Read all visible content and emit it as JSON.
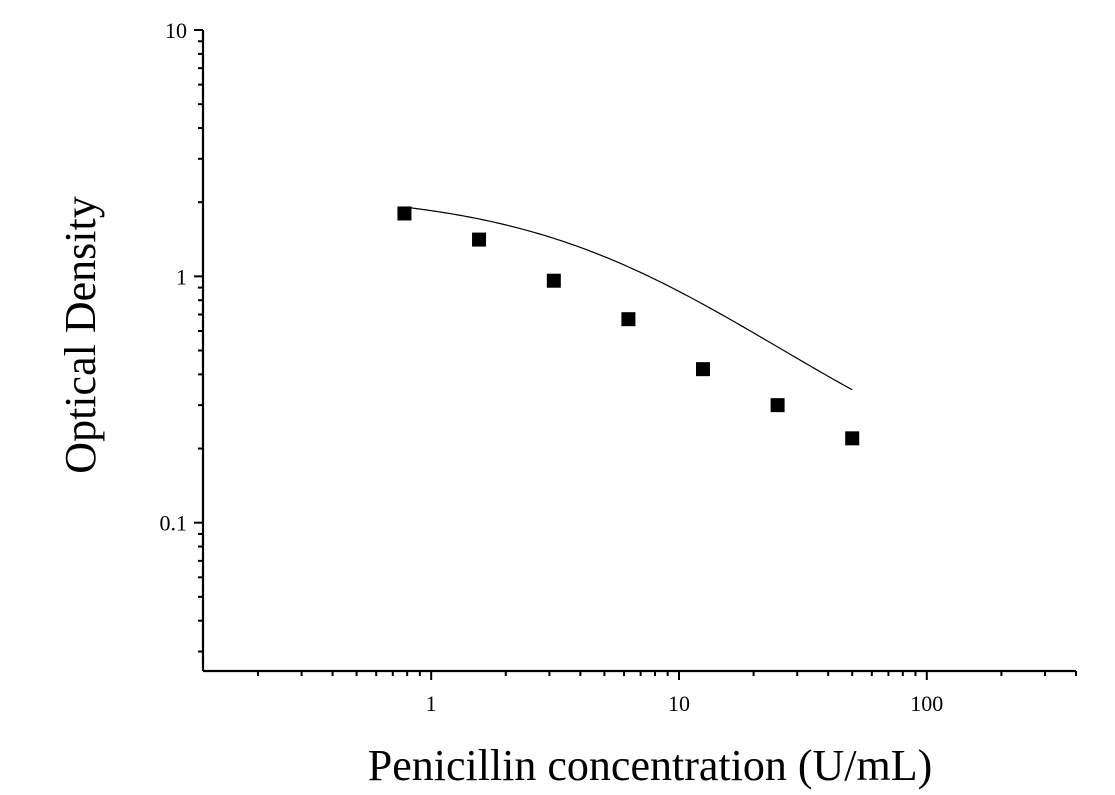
{
  "chart_data": {
    "type": "scatter",
    "title": "",
    "xlabel": "Penicillin concentration (U/mL)",
    "ylabel": "Optical Density",
    "x_scale": "log",
    "y_scale": "log",
    "xlim": [
      0.12,
      400
    ],
    "ylim": [
      0.025,
      10
    ],
    "x_ticks": [
      {
        "value": 1,
        "label": "1"
      },
      {
        "value": 10,
        "label": "10"
      },
      {
        "value": 100,
        "label": "100"
      }
    ],
    "y_ticks": [
      {
        "value": 0.1,
        "label": "0.1"
      },
      {
        "value": 1,
        "label": "1"
      },
      {
        "value": 10,
        "label": "10"
      }
    ],
    "grid": false,
    "legend": "none",
    "series": [
      {
        "marker": "square",
        "color": "#000000",
        "x": [
          0.78,
          1.56,
          3.125,
          6.25,
          12.5,
          25,
          50
        ],
        "y": [
          1.8,
          1.41,
          0.96,
          0.67,
          0.42,
          0.3,
          0.22
        ]
      }
    ],
    "fit_curve": {
      "type": "4PL",
      "color": "#000000",
      "a": 0.12,
      "b": 0.95,
      "c": 5.5,
      "d": 2.19
    }
  }
}
